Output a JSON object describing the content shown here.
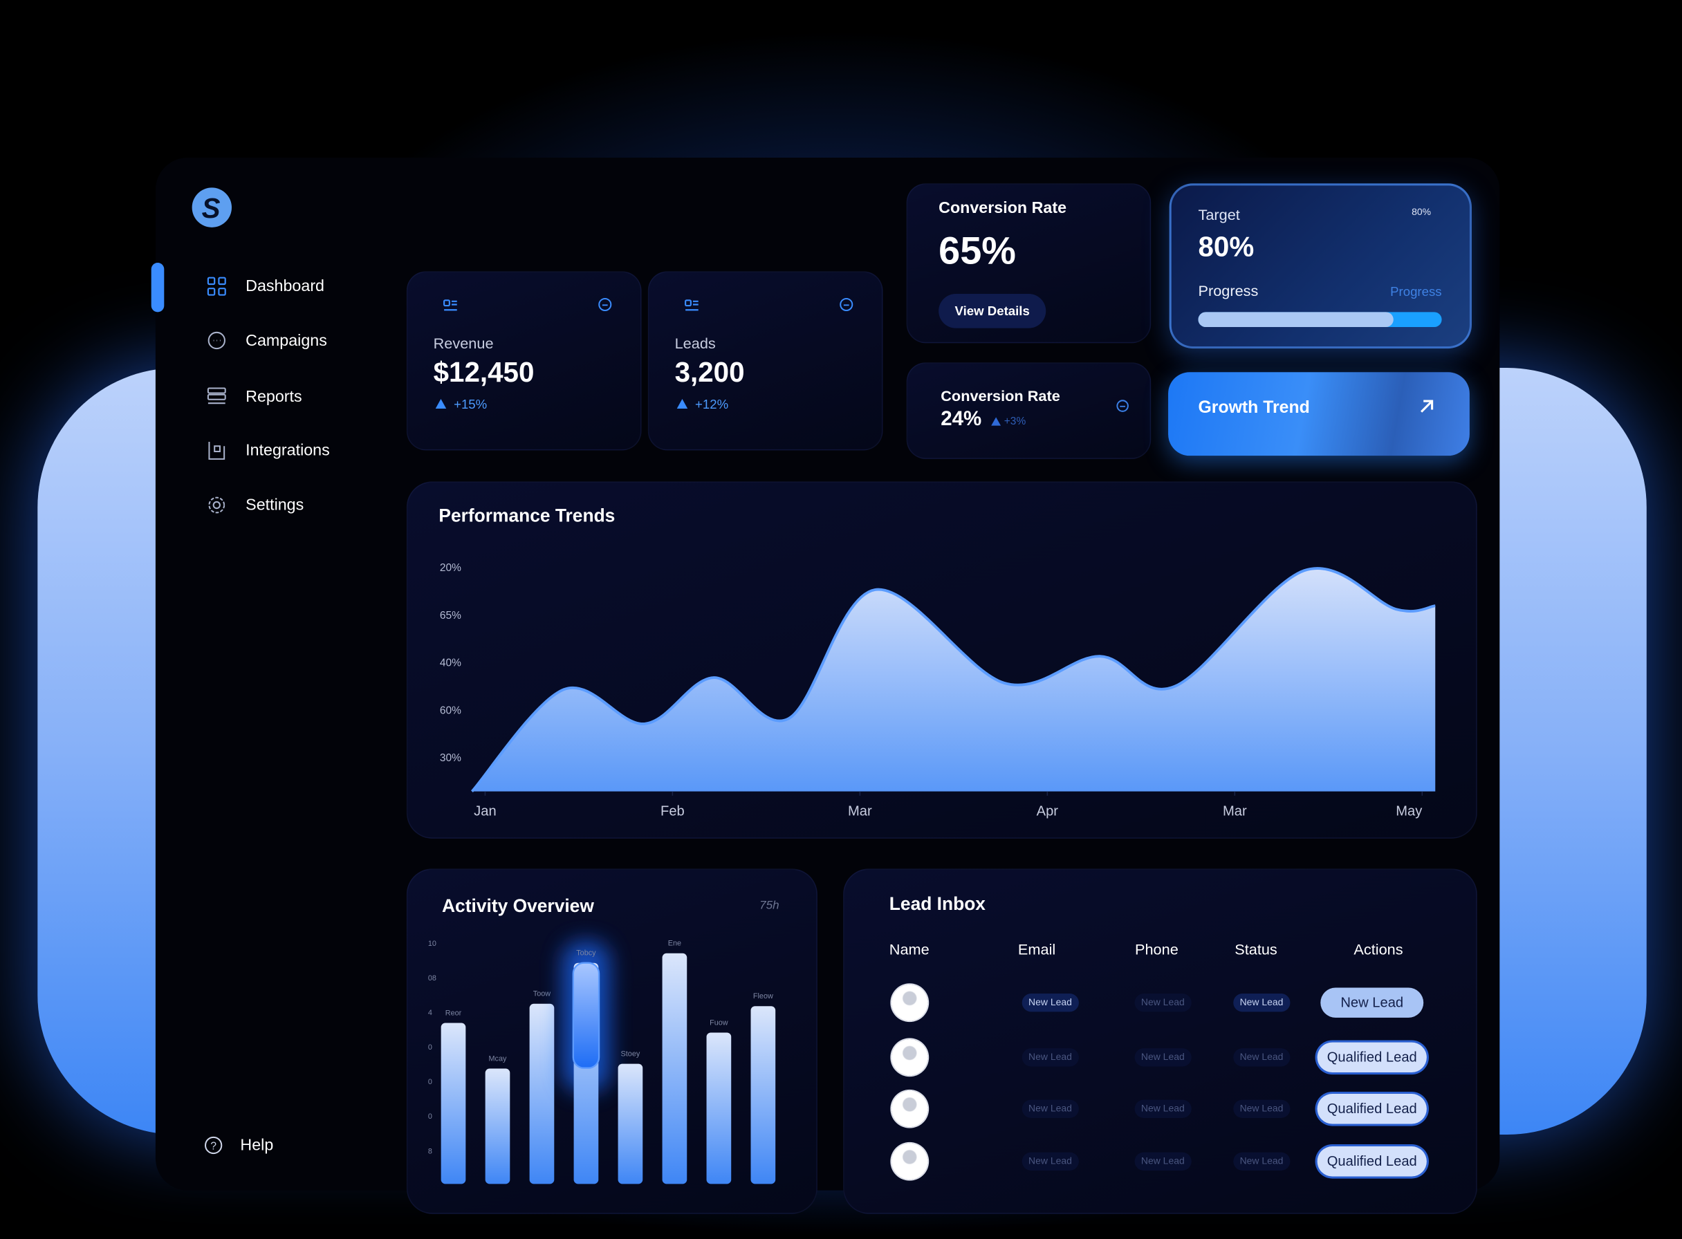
{
  "sidebar": {
    "logo": "S",
    "nav": [
      "Dashboard",
      "Campaigns",
      "Reports",
      "Integrations",
      "Settings"
    ],
    "help": "Help"
  },
  "stats": [
    {
      "label": "Revenue",
      "value": "$12,450",
      "change": "+15%"
    },
    {
      "label": "Leads",
      "value": "3,200",
      "change": "+12%"
    }
  ],
  "conversion_card": {
    "title": "Conversion Rate",
    "value": "65%",
    "button": "View Details"
  },
  "target_card": {
    "title": "Target",
    "value": "80%",
    "badge": "80%",
    "progress_label": "Progress",
    "progress_hint": "Progress",
    "progress": 80
  },
  "conversion_small": {
    "title": "Conversion Rate",
    "value": "24%",
    "change": "+3%"
  },
  "growth_trend": {
    "label": "Growth Trend"
  },
  "performance": {
    "type": "area",
    "title": "Performance Trends",
    "y_axis_labels": [
      "20%",
      "65%",
      "40%",
      "60%",
      "30%"
    ],
    "x": [
      -0.07,
      0.42,
      0.85,
      1.22,
      1.62,
      2.08,
      2.77,
      3.28,
      3.68,
      4.37,
      4.86,
      5.07
    ],
    "values": [
      0,
      45.7,
      30.3,
      51,
      32.7,
      90.4,
      48.6,
      60.6,
      47.1,
      99,
      81.7,
      83.2
    ],
    "xlim": [
      -0.07,
      5.07
    ],
    "xticks": [
      {
        "value": 0,
        "label": "Jan"
      },
      {
        "value": 1,
        "label": "Feb"
      },
      {
        "value": 2,
        "label": "Mar"
      },
      {
        "value": 3,
        "label": "Apr"
      },
      {
        "value": 4,
        "label": "Mar"
      },
      {
        "value": 5,
        "label": "May"
      }
    ],
    "ylim": [
      0,
      100
    ],
    "color": "#5b9cff"
  },
  "activity": {
    "type": "bar",
    "title": "Activity Overview",
    "note": "75h",
    "y_axis_labels": [
      "10",
      "08",
      "4",
      "0",
      "0",
      "0",
      "8"
    ],
    "categories": [
      "Reor",
      "Mcay",
      "Toow",
      "Tobcy",
      "Stoey",
      "Ene",
      "Fuow",
      "Fleow"
    ],
    "values": [
      6.7,
      4.8,
      7.5,
      9.2,
      5.0,
      9.6,
      6.3,
      7.4
    ],
    "ylim": [
      0,
      10
    ]
  },
  "lead_inbox": {
    "title": "Lead Inbox",
    "columns": [
      "Name",
      "Email",
      "Phone",
      "Status",
      "Actions"
    ],
    "rows": [
      [
        "New Lead",
        "New Lead",
        "New Lead",
        "New Lead"
      ],
      [
        "New Lead",
        "New Lead",
        "New Lead",
        "Qualified Lead"
      ],
      [
        "New Lead",
        "New Lead",
        "New Lead",
        "Qualified Lead"
      ],
      [
        "New Lead",
        "New Lead",
        "New Lead",
        "Qualified Lead"
      ]
    ]
  }
}
